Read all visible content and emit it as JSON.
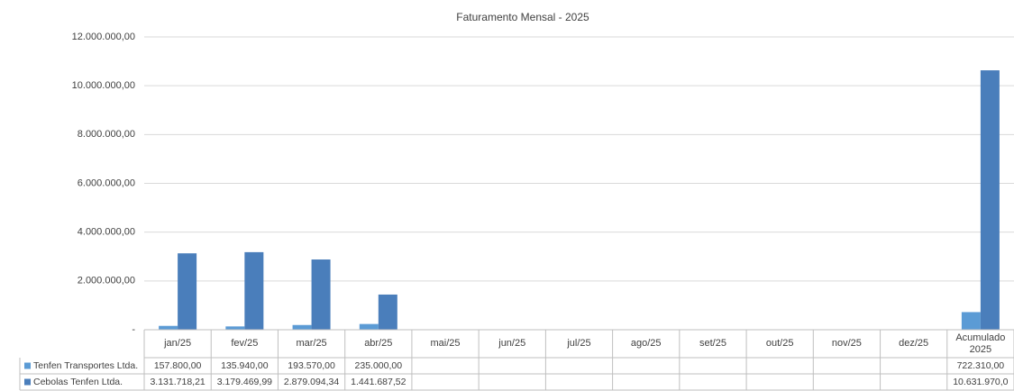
{
  "chart_data": {
    "type": "bar",
    "title": "Faturamento Mensal - 2025",
    "categories": [
      "jan/25",
      "fev/25",
      "mar/25",
      "abr/25",
      "mai/25",
      "jun/25",
      "jul/25",
      "ago/25",
      "set/25",
      "out/25",
      "nov/25",
      "dez/25",
      "Acumulado 2025"
    ],
    "series": [
      {
        "name": "Tenfen Transportes Ltda.",
        "color": "#5b9bd5",
        "values": [
          157800,
          135940,
          193570,
          235000,
          null,
          null,
          null,
          null,
          null,
          null,
          null,
          null,
          722310
        ],
        "value_labels": [
          "157.800,00",
          "135.940,00",
          "193.570,00",
          "235.000,00",
          null,
          null,
          null,
          null,
          null,
          null,
          null,
          null,
          "722.310,00"
        ]
      },
      {
        "name": "Cebolas Tenfen Ltda.",
        "color": "#4a7ebb",
        "values": [
          3131718.21,
          3179469.99,
          2879094.34,
          1441687.52,
          null,
          null,
          null,
          null,
          null,
          null,
          null,
          null,
          10631970
        ],
        "value_labels": [
          "3.131.718,21",
          "3.179.469,99",
          "2.879.094,34",
          "1.441.687,52",
          null,
          null,
          null,
          null,
          null,
          null,
          null,
          null,
          "10.631.970,0"
        ]
      }
    ],
    "ylim": [
      0,
      12000000
    ],
    "yticks": [
      {
        "value": 0,
        "label": "-"
      },
      {
        "value": 2000000,
        "label": "2.000.000,00"
      },
      {
        "value": 4000000,
        "label": "4.000.000,00"
      },
      {
        "value": 6000000,
        "label": "6.000.000,00"
      },
      {
        "value": 8000000,
        "label": "8.000.000,00"
      },
      {
        "value": 10000000,
        "label": "10.000.000,00"
      },
      {
        "value": 12000000,
        "label": "12.000.000,00"
      }
    ],
    "grid": true
  }
}
